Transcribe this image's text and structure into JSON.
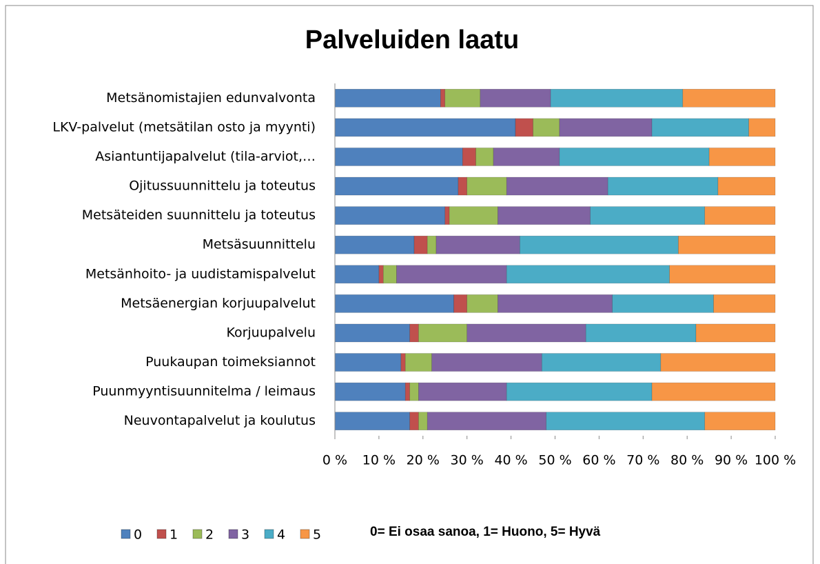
{
  "chart_data": {
    "type": "stacked_barh",
    "title": "Palveluiden laatu",
    "categories": [
      "Metsänomistajien edunvalvonta",
      "LKV-palvelut (metsätilan osto ja myynti)",
      "Asiantuntijapalvelut (tila-arviot,…",
      "Ojitussuunnittelu ja toteutus",
      "Metsäteiden suunnittelu ja toteutus",
      "Metsäsuunnittelu",
      "Metsänhoito- ja uudistamispalvelut",
      "Metsäenergian korjuupalvelut",
      "Korjuupalvelu",
      "Puukaupan toimeksiannot",
      "Puunmyyntisuunnitelma / leimaus",
      "Neuvontapalvelut ja koulutus"
    ],
    "series": [
      {
        "name": "0",
        "color": "#4f81bd",
        "values": [
          24,
          41,
          29,
          28,
          25,
          18,
          10,
          27,
          17,
          15,
          16,
          17
        ]
      },
      {
        "name": "1",
        "color": "#c0504d",
        "values": [
          1,
          4,
          3,
          2,
          1,
          3,
          1,
          3,
          2,
          1,
          1,
          2
        ]
      },
      {
        "name": "2",
        "color": "#9bbb59",
        "values": [
          8,
          6,
          4,
          9,
          11,
          2,
          3,
          7,
          11,
          6,
          2,
          2
        ]
      },
      {
        "name": "3",
        "color": "#8064a2",
        "values": [
          16,
          21,
          15,
          23,
          21,
          19,
          25,
          26,
          27,
          25,
          20,
          27
        ]
      },
      {
        "name": "4",
        "color": "#4bacc6",
        "values": [
          30,
          22,
          34,
          25,
          26,
          36,
          37,
          23,
          25,
          27,
          33,
          36
        ]
      },
      {
        "name": "5",
        "color": "#f79646",
        "values": [
          21,
          6,
          15,
          13,
          16,
          22,
          24,
          14,
          18,
          26,
          28,
          16
        ]
      }
    ],
    "xlim": [
      0,
      100
    ],
    "xticks": [
      {
        "value": 0,
        "label": "0 %"
      },
      {
        "value": 10,
        "label": "10 %"
      },
      {
        "value": 20,
        "label": "20 %"
      },
      {
        "value": 30,
        "label": "30 %"
      },
      {
        "value": 40,
        "label": "40 %"
      },
      {
        "value": 50,
        "label": "50 %"
      },
      {
        "value": 60,
        "label": "60 %"
      },
      {
        "value": 70,
        "label": "70 %"
      },
      {
        "value": 80,
        "label": "80 %"
      },
      {
        "value": 90,
        "label": "90 %"
      },
      {
        "value": 100,
        "label": "100 %"
      }
    ],
    "annotation": "0= Ei osaa sanoa, 1= Huono, 5= Hyvä",
    "legend": "bottom"
  }
}
